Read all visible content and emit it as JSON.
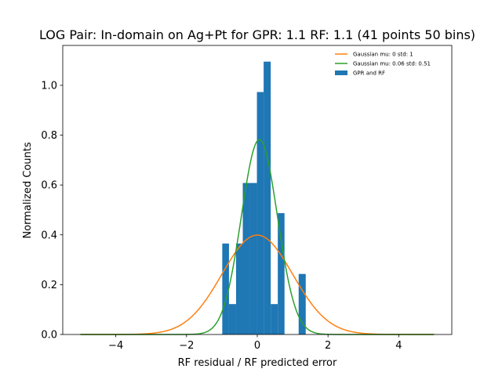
{
  "chart_data": {
    "type": "bar",
    "title": "LOG Pair: In-domain on Ag+Pt for GPR: 1.1 RF: 1.1 (41 points 50 bins)",
    "xlabel": "RF residual / RF predicted error",
    "ylabel": "Normalized Counts",
    "xlim": [
      -5.5,
      5.5
    ],
    "ylim": [
      0,
      1.16
    ],
    "xticks": [
      -4,
      -2,
      0,
      2,
      4
    ],
    "xtick_labels": [
      "−4",
      "−2",
      "0",
      "2",
      "4"
    ],
    "yticks": [
      0.0,
      0.2,
      0.4,
      0.6,
      0.8,
      1.0
    ],
    "ytick_labels": [
      "0.0",
      "0.2",
      "0.4",
      "0.6",
      "0.8",
      "1.0"
    ],
    "grid": false,
    "legend_position": "top-right",
    "histogram": {
      "name": "GPR and RF",
      "color": "#1f77b4",
      "bins": [
        {
          "x0": -0.99,
          "x1": -0.8,
          "value": 0.365
        },
        {
          "x0": -0.8,
          "x1": -0.6,
          "value": 0.122
        },
        {
          "x0": -0.6,
          "x1": -0.41,
          "value": 0.365
        },
        {
          "x0": -0.41,
          "x1": -0.21,
          "value": 0.608
        },
        {
          "x0": -0.21,
          "x1": -0.01,
          "value": 0.608
        },
        {
          "x0": -0.01,
          "x1": 0.18,
          "value": 0.973
        },
        {
          "x0": 0.18,
          "x1": 0.38,
          "value": 1.095
        },
        {
          "x0": 0.38,
          "x1": 0.58,
          "value": 0.122
        },
        {
          "x0": 0.58,
          "x1": 0.77,
          "value": 0.487
        },
        {
          "x0": 1.17,
          "x1": 1.37,
          "value": 0.243
        }
      ]
    },
    "series": [
      {
        "name": "Gaussian mu: 0 std: 1",
        "type": "gaussian",
        "mu": 0,
        "std": 1,
        "x_range": [
          -5,
          5
        ],
        "color": "#ff7f0e"
      },
      {
        "name": "Gaussian mu: 0.06 std: 0.51",
        "type": "gaussian",
        "mu": 0.06,
        "std": 0.51,
        "x_range": [
          -5,
          5
        ],
        "color": "#2ca02c"
      }
    ]
  }
}
